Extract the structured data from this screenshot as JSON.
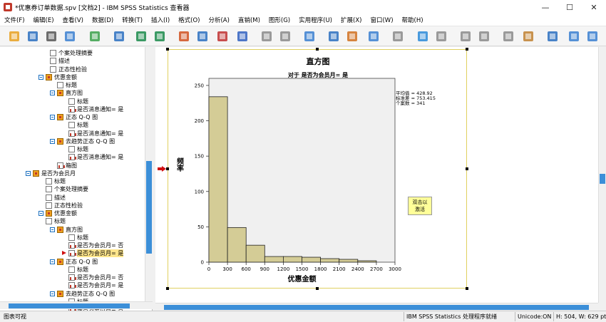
{
  "window": {
    "title": "*优惠券订单数据.spv [文档2] - IBM SPSS Statistics 查看器",
    "controls": [
      "—",
      "☐",
      "✕"
    ]
  },
  "menu": [
    "文件(F)",
    "编辑(E)",
    "查看(V)",
    "数据(D)",
    "转换(T)",
    "插入(I)",
    "格式(O)",
    "分析(A)",
    "直销(M)",
    "图形(G)",
    "实用程序(U)",
    "扩展(X)",
    "窗口(W)",
    "帮助(H)"
  ],
  "toolbar_icons": [
    "open-icon",
    "save-icon",
    "print-icon",
    "print-preview-icon",
    "export-icon",
    "recall-dialog-icon",
    "undo-icon",
    "redo-icon",
    "goto-data-icon",
    "goto-case-icon",
    "goto-variable-icon",
    "variables-icon",
    "use-sets-icon",
    "show-all-variables-icon",
    "spell-check-icon",
    "designate-window-icon",
    "select-last-output-icon",
    "create-edit-autoscript-icon",
    "run-script-icon",
    "promote-icon",
    "demote-icon",
    "expand-icon",
    "collapse-icon",
    "show-icon",
    "hide-icon",
    "insert-heading-icon",
    "insert-title-icon",
    "insert-text-icon",
    "output-pane-icon"
  ],
  "tree": [
    {
      "label": "个案处理摘要",
      "icon": "page"
    },
    {
      "label": "描述",
      "icon": "page"
    },
    {
      "label": "正态性检验",
      "icon": "page"
    },
    {
      "label": "优惠金额",
      "icon": "folder"
    },
    {
      "label": "标题",
      "icon": "page"
    },
    {
      "label": "直方图",
      "icon": "folder"
    },
    {
      "label": "标题",
      "icon": "page"
    },
    {
      "label": "是否消息通知= 是",
      "icon": "chart"
    },
    {
      "label": "正态 Q-Q 图",
      "icon": "folder"
    },
    {
      "label": "标题",
      "icon": "page"
    },
    {
      "label": "是否消息通知= 是",
      "icon": "chart"
    },
    {
      "label": "去趋势正态 Q-Q 图",
      "icon": "folder"
    },
    {
      "label": "标题",
      "icon": "page"
    },
    {
      "label": "是否消息通知= 是",
      "icon": "chart"
    },
    {
      "label": "箱图",
      "icon": "chart"
    },
    {
      "label": "是否为会员月",
      "icon": "folder"
    },
    {
      "label": "标题",
      "icon": "page"
    },
    {
      "label": "个案处理摘要",
      "icon": "page"
    },
    {
      "label": "描述",
      "icon": "page"
    },
    {
      "label": "正态性检验",
      "icon": "page"
    },
    {
      "label": "优惠金额",
      "icon": "folder"
    },
    {
      "label": "标题",
      "icon": "page"
    },
    {
      "label": "直方图",
      "icon": "folder"
    },
    {
      "label": "标题",
      "icon": "page"
    },
    {
      "label": "是否为会员月= 否",
      "icon": "chart"
    },
    {
      "label": "是否为会员月= 是",
      "icon": "chart",
      "selected": true
    },
    {
      "label": "正态 Q-Q 图",
      "icon": "folder"
    },
    {
      "label": "标题",
      "icon": "page"
    },
    {
      "label": "是否为会员月= 否",
      "icon": "chart"
    },
    {
      "label": "是否为会员月= 是",
      "icon": "chart"
    },
    {
      "label": "去趋势正态 Q-Q 图",
      "icon": "folder"
    },
    {
      "label": "标题",
      "icon": "page"
    },
    {
      "label": "是否为会员月= 否",
      "icon": "chart"
    }
  ],
  "chart_data": {
    "type": "bar",
    "title": "直方图",
    "subtitle": "对于 是否为会员月= 是",
    "xlabel": "优惠金额",
    "ylabel": "频率",
    "xticks": [
      "0",
      "300",
      "600",
      "900",
      "1200",
      "1500",
      "1800",
      "2100",
      "2400",
      "2700",
      "3000"
    ],
    "yticks": [
      "0",
      "50",
      "100",
      "150",
      "200",
      "250"
    ],
    "xlim": [
      0,
      3000
    ],
    "ylim": [
      0,
      260
    ],
    "bin_width": 300,
    "bins": [
      0,
      300,
      600,
      900,
      1200,
      1500,
      1800,
      2100,
      2400
    ],
    "values": [
      234,
      49,
      24,
      8,
      8,
      7,
      5,
      4,
      2
    ],
    "bar_color": "#d4cc96",
    "plot_background": "#f0f0f0",
    "stats": [
      "平均值 = 428.92",
      "标准差 = 753.415",
      "个案数 = 341"
    ]
  },
  "note": "双击以\n激活",
  "status": {
    "left": "图表可视",
    "processor": "IBM SPSS Statistics 处理程序就绪",
    "unicode": "Unicode:ON",
    "dims": "H: 504, W: 629 pt."
  }
}
